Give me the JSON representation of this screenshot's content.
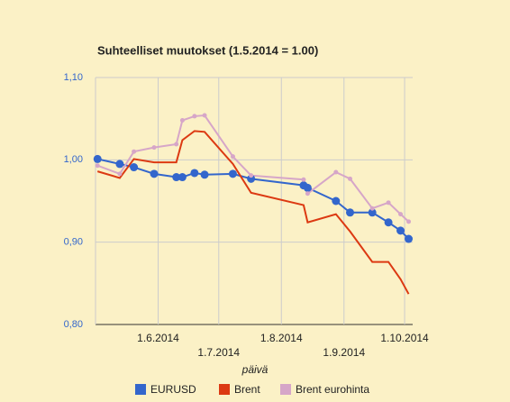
{
  "chart_data": {
    "type": "line",
    "title": "Suhteelliset muutokset (1.5.2014 = 1.00)",
    "x_label": "päivä",
    "x": [
      "2014-05-02",
      "2014-05-13",
      "2014-05-20",
      "2014-05-30",
      "2014-06-10",
      "2014-06-13",
      "2014-06-19",
      "2014-06-24",
      "2014-07-08",
      "2014-07-17",
      "2014-08-12",
      "2014-08-14",
      "2014-08-28",
      "2014-09-04",
      "2014-09-15",
      "2014-09-23",
      "2014-09-29",
      "2014-10-03"
    ],
    "series": [
      {
        "name": "EURUSD",
        "color": "#3366cc",
        "marker": "large",
        "values": [
          1.001,
          0.995,
          0.991,
          0.983,
          0.979,
          0.979,
          0.984,
          0.982,
          0.983,
          0.977,
          0.969,
          0.966,
          0.95,
          0.936,
          0.936,
          0.924,
          0.914,
          0.904
        ]
      },
      {
        "name": "Brent",
        "color": "#dc3912",
        "marker": "none",
        "values": [
          0.986,
          0.978,
          1.001,
          0.997,
          0.997,
          1.024,
          1.035,
          1.034,
          0.995,
          0.96,
          0.945,
          0.924,
          0.934,
          0.913,
          0.876,
          0.876,
          0.855,
          0.837
        ]
      },
      {
        "name": "Brent eurohinta",
        "color": "#d6a6c8",
        "marker": "small",
        "values": [
          0.993,
          0.983,
          1.01,
          1.015,
          1.019,
          1.048,
          1.053,
          1.054,
          1.004,
          0.981,
          0.976,
          0.959,
          0.985,
          0.977,
          0.941,
          0.948,
          0.934,
          0.925
        ]
      }
    ],
    "xlim": [
      "2014-05-01",
      "2014-10-05"
    ],
    "xticks": [
      {
        "value": "2014-06-01",
        "label": "1.6.2014"
      },
      {
        "value": "2014-07-01",
        "label": "1.7.2014"
      },
      {
        "value": "2014-08-01",
        "label": "1.8.2014"
      },
      {
        "value": "2014-09-01",
        "label": "1.9.2014"
      },
      {
        "value": "2014-10-01",
        "label": "1.10.2014"
      }
    ],
    "ylim": [
      0.8,
      1.1
    ],
    "yticks": [
      {
        "value": 0.8,
        "label": "0,80"
      },
      {
        "value": 0.9,
        "label": "0,90"
      },
      {
        "value": 1.0,
        "label": "1,00"
      },
      {
        "value": 1.1,
        "label": "1,10"
      }
    ],
    "grid": true,
    "legend": "bottom"
  }
}
